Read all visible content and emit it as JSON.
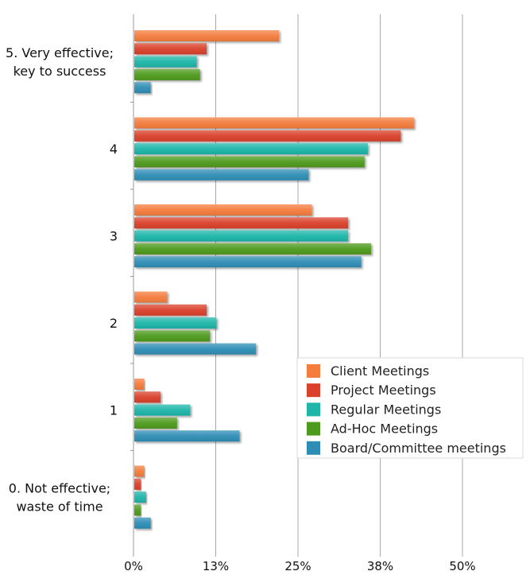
{
  "chart_data": {
    "type": "bar",
    "orientation": "horizontal",
    "categories": [
      [
        "5. Very effective;",
        "key to success"
      ],
      [
        "4"
      ],
      [
        "3"
      ],
      [
        "2"
      ],
      [
        "1"
      ],
      [
        "0. Not effective;",
        "waste of time"
      ]
    ],
    "x_ticks": [
      "0%",
      "13%",
      "25%",
      "38%",
      "50%"
    ],
    "xlim": [
      0,
      50
    ],
    "grid": true,
    "legend_position": "bottom-right",
    "series": [
      {
        "name": "Client Meetings",
        "color": "#F47C3C",
        "values": [
          22,
          42.5,
          27,
          5,
          1.5,
          1.5
        ]
      },
      {
        "name": "Project Meetings",
        "color": "#D9412B",
        "values": [
          11,
          40.5,
          32.5,
          11,
          4,
          1
        ]
      },
      {
        "name": "Regular Meetings",
        "color": "#1FB5A8",
        "values": [
          9.5,
          35.5,
          32.5,
          12.5,
          8.5,
          1.8
        ]
      },
      {
        "name": "Ad-Hoc Meetings",
        "color": "#4E9A1E",
        "values": [
          10,
          35,
          36,
          11.5,
          6.5,
          1
        ]
      },
      {
        "name": "Board/Committee meetings",
        "color": "#2E8DB5",
        "values": [
          2.5,
          26.5,
          34.5,
          18.5,
          16,
          2.5
        ]
      }
    ]
  }
}
